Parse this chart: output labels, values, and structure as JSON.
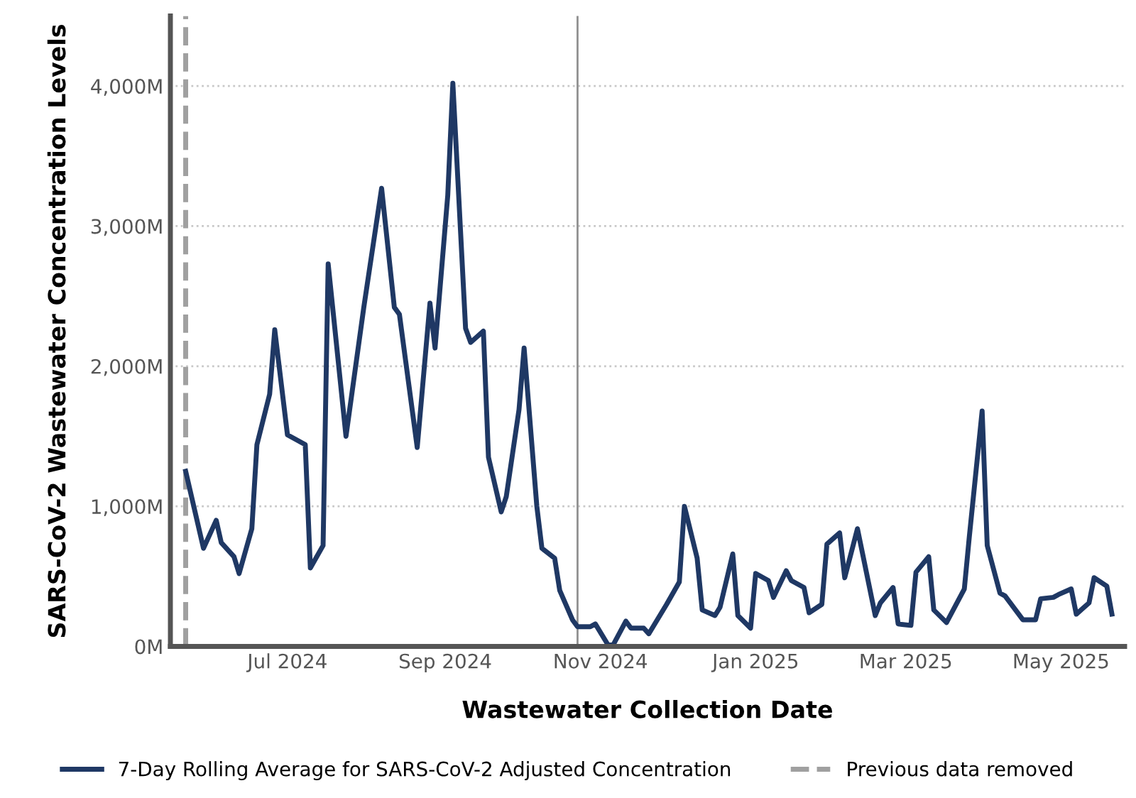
{
  "chart_data": {
    "type": "line",
    "xlabel": "Wastewater Collection Date",
    "ylabel": "SARS-CoV-2 Wastewater Concentration Levels",
    "x": [
      "2024-05-22",
      "2024-05-29",
      "2024-06-03",
      "2024-06-05",
      "2024-06-10",
      "2024-06-12",
      "2024-06-17",
      "2024-06-19",
      "2024-06-24",
      "2024-06-26",
      "2024-07-01",
      "2024-07-08",
      "2024-07-10",
      "2024-07-15",
      "2024-07-17",
      "2024-07-24",
      "2024-07-31",
      "2024-08-07",
      "2024-08-12",
      "2024-08-14",
      "2024-08-21",
      "2024-08-26",
      "2024-08-28",
      "2024-09-02",
      "2024-09-04",
      "2024-09-09",
      "2024-09-11",
      "2024-09-16",
      "2024-09-18",
      "2024-09-23",
      "2024-09-25",
      "2024-09-30",
      "2024-10-02",
      "2024-10-07",
      "2024-10-09",
      "2024-10-14",
      "2024-10-16",
      "2024-10-21",
      "2024-10-23",
      "2024-10-28",
      "2024-10-30",
      "2024-11-04",
      "2024-11-06",
      "2024-11-11",
      "2024-11-13",
      "2024-11-18",
      "2024-11-20",
      "2024-11-27",
      "2024-12-02",
      "2024-12-04",
      "2024-12-09",
      "2024-12-11",
      "2024-12-16",
      "2024-12-18",
      "2024-12-23",
      "2024-12-25",
      "2024-12-30",
      "2025-01-01",
      "2025-01-06",
      "2025-01-08",
      "2025-01-13",
      "2025-01-15",
      "2025-01-20",
      "2025-01-22",
      "2025-01-27",
      "2025-01-29",
      "2025-02-03",
      "2025-02-05",
      "2025-02-10",
      "2025-02-17",
      "2025-02-19",
      "2025-02-24",
      "2025-02-26",
      "2025-03-03",
      "2025-03-05",
      "2025-03-10",
      "2025-03-12",
      "2025-03-17",
      "2025-03-24",
      "2025-03-26",
      "2025-03-31",
      "2025-04-02",
      "2025-04-07",
      "2025-04-09",
      "2025-04-16",
      "2025-04-21",
      "2025-04-23",
      "2025-04-28",
      "2025-04-30",
      "2025-05-05",
      "2025-05-07",
      "2025-05-12",
      "2025-05-14",
      "2025-05-19",
      "2025-05-21"
    ],
    "series": [
      {
        "name": "7-Day Rolling Average for SARS-CoV-2 Adjusted Concentration",
        "color": "#1f3864",
        "values": [
          1250,
          700,
          900,
          740,
          640,
          520,
          840,
          1440,
          1800,
          2260,
          1510,
          1440,
          560,
          720,
          2730,
          1500,
          2420,
          3270,
          2420,
          2370,
          1420,
          2450,
          2130,
          3220,
          4020,
          2270,
          2170,
          2250,
          1350,
          960,
          1070,
          1690,
          2130,
          1000,
          700,
          630,
          400,
          190,
          140,
          140,
          160,
          10,
          10,
          180,
          130,
          130,
          90,
          300,
          460,
          1000,
          630,
          260,
          220,
          280,
          660,
          220,
          130,
          520,
          470,
          350,
          540,
          470,
          420,
          240,
          300,
          730,
          810,
          490,
          840,
          220,
          310,
          420,
          160,
          150,
          530,
          640,
          260,
          170,
          410,
          790,
          1680,
          720,
          380,
          360,
          190,
          190,
          340,
          350,
          370,
          410,
          230,
          310,
          490,
          430,
          230
        ]
      }
    ],
    "xlim": [
      "2024-05-16",
      "2025-05-26"
    ],
    "xticks": [
      {
        "value": "2024-07-01",
        "label": "Jul 2024"
      },
      {
        "value": "2024-09-01",
        "label": "Sep 2024"
      },
      {
        "value": "2024-11-01",
        "label": "Nov 2024"
      },
      {
        "value": "2025-01-01",
        "label": "Jan 2025"
      },
      {
        "value": "2025-03-01",
        "label": "Mar 2025"
      },
      {
        "value": "2025-05-01",
        "label": "May 2025"
      }
    ],
    "ylim": [
      0,
      4500
    ],
    "yticks": [
      {
        "value": 0,
        "label": "0M"
      },
      {
        "value": 1000,
        "label": "1,000M"
      },
      {
        "value": 2000,
        "label": "2,000M"
      },
      {
        "value": 3000,
        "label": "3,000M"
      },
      {
        "value": 4000,
        "label": "4,000M"
      }
    ],
    "ref_lines": [
      {
        "axis": "x",
        "value": "2024-05-22",
        "label": "Previous data removed",
        "color": "#a0a0a0",
        "line_style": "dashed"
      },
      {
        "axis": "x",
        "value": "2024-10-23",
        "color": "#909090",
        "line_style": "solid"
      }
    ],
    "grid": "y",
    "legend": "bottom",
    "line_style": "solid"
  }
}
